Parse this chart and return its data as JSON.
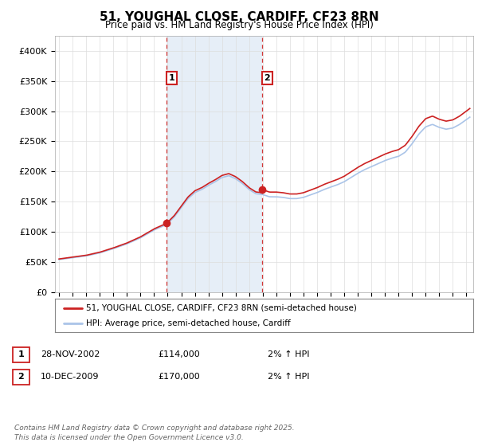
{
  "title": "51, YOUGHAL CLOSE, CARDIFF, CF23 8RN",
  "subtitle": "Price paid vs. HM Land Registry's House Price Index (HPI)",
  "ylabel_ticks": [
    "£0",
    "£50K",
    "£100K",
    "£150K",
    "£200K",
    "£250K",
    "£300K",
    "£350K",
    "£400K"
  ],
  "ytick_values": [
    0,
    50000,
    100000,
    150000,
    200000,
    250000,
    300000,
    350000,
    400000
  ],
  "ylim": [
    0,
    425000
  ],
  "xlim_start": 1994.7,
  "xlim_end": 2025.5,
  "sale1_year": 2002.92,
  "sale1_price": 114000,
  "sale2_year": 2009.95,
  "sale2_price": 170000,
  "legend_label_red": "51, YOUGHAL CLOSE, CARDIFF, CF23 8RN (semi-detached house)",
  "legend_label_blue": "HPI: Average price, semi-detached house, Cardiff",
  "table_row1": [
    "1",
    "28-NOV-2002",
    "£114,000",
    "2% ↑ HPI"
  ],
  "table_row2": [
    "2",
    "10-DEC-2009",
    "£170,000",
    "2% ↑ HPI"
  ],
  "footer": "Contains HM Land Registry data © Crown copyright and database right 2025.\nThis data is licensed under the Open Government Licence v3.0.",
  "hpi_color": "#aac4e8",
  "price_color": "#cc2222",
  "vline_color": "#cc2222",
  "bg_color": "#dce8f5",
  "grid_color": "#dddddd"
}
